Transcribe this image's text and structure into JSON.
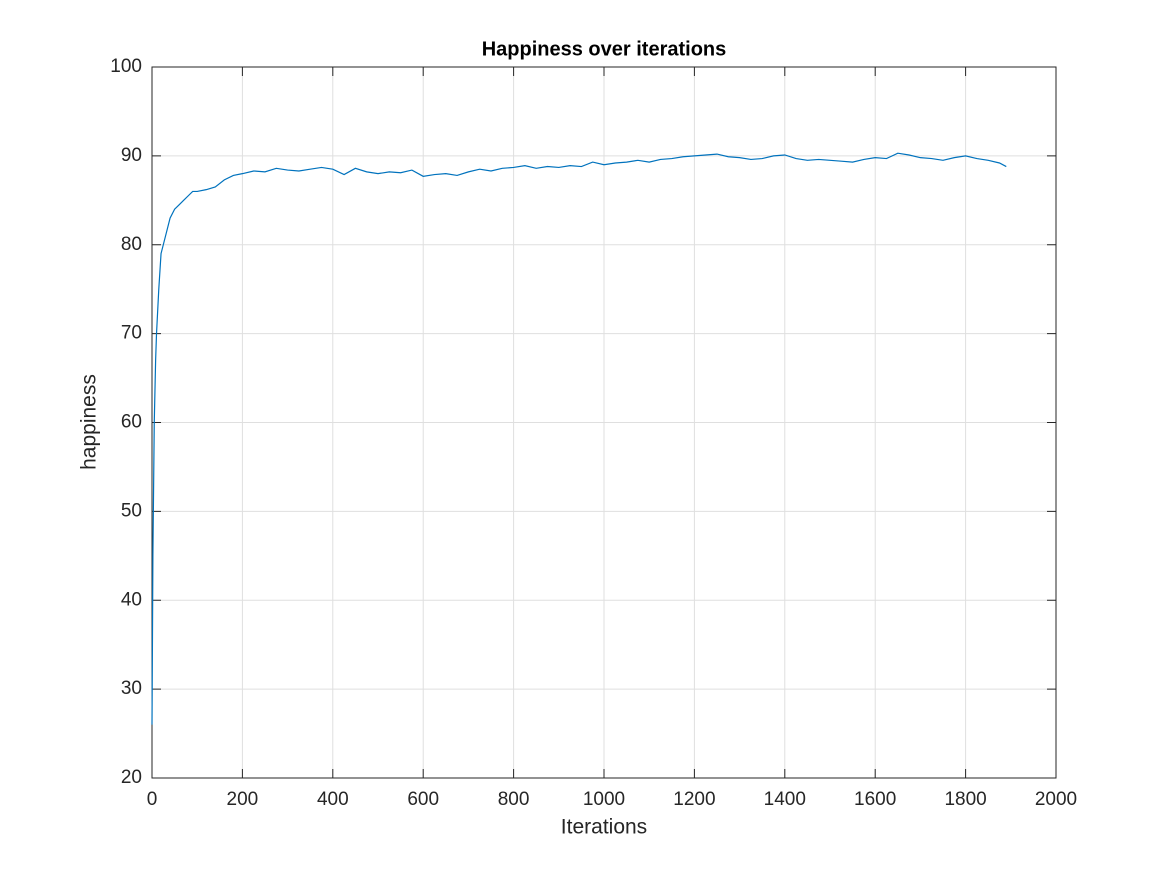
{
  "chart_data": {
    "type": "line",
    "title": "Happiness over iterations",
    "x_label": "Iterations",
    "y_label": "happiness",
    "x": [
      0,
      2,
      5,
      8,
      10,
      15,
      20,
      25,
      30,
      40,
      50,
      60,
      70,
      80,
      90,
      100,
      120,
      140,
      160,
      180,
      200,
      225,
      250,
      275,
      300,
      325,
      350,
      375,
      400,
      425,
      450,
      475,
      500,
      525,
      550,
      575,
      600,
      625,
      650,
      675,
      700,
      725,
      750,
      775,
      800,
      825,
      850,
      875,
      900,
      925,
      950,
      975,
      1000,
      1025,
      1050,
      1075,
      1100,
      1125,
      1150,
      1175,
      1200,
      1225,
      1250,
      1275,
      1300,
      1325,
      1350,
      1375,
      1400,
      1425,
      1450,
      1475,
      1500,
      1525,
      1550,
      1575,
      1600,
      1625,
      1650,
      1675,
      1700,
      1725,
      1750,
      1775,
      1800,
      1825,
      1850,
      1875,
      1890
    ],
    "series": [
      {
        "name": "happiness",
        "color": "#0072bd",
        "values": [
          26,
          45,
          60,
          67,
          70,
          75,
          79,
          80,
          81,
          83,
          84,
          84.5,
          85,
          85.5,
          86,
          86,
          86.2,
          86.5,
          87.3,
          87.8,
          88,
          88.3,
          88.2,
          88.6,
          88.4,
          88.3,
          88.5,
          88.7,
          88.5,
          87.9,
          88.6,
          88.2,
          88,
          88.2,
          88.1,
          88.4,
          87.7,
          87.9,
          88,
          87.8,
          88.2,
          88.5,
          88.3,
          88.6,
          88.7,
          88.9,
          88.6,
          88.8,
          88.7,
          88.9,
          88.8,
          89.3,
          89,
          89.2,
          89.3,
          89.5,
          89.3,
          89.6,
          89.7,
          89.9,
          90,
          90.1,
          90.2,
          89.9,
          89.8,
          89.6,
          89.7,
          90,
          90.1,
          89.7,
          89.5,
          89.6,
          89.5,
          89.4,
          89.3,
          89.6,
          89.8,
          89.7,
          90.3,
          90.1,
          89.8,
          89.7,
          89.5,
          89.8,
          90,
          89.7,
          89.5,
          89.2,
          88.8
        ]
      }
    ],
    "xlim": [
      0,
      2000
    ],
    "xticks": [
      0,
      200,
      400,
      600,
      800,
      1000,
      1200,
      1400,
      1600,
      1800,
      2000
    ],
    "ylim": [
      20,
      100
    ],
    "yticks": [
      20,
      30,
      40,
      50,
      60,
      70,
      80,
      90,
      100
    ],
    "grid": true
  }
}
